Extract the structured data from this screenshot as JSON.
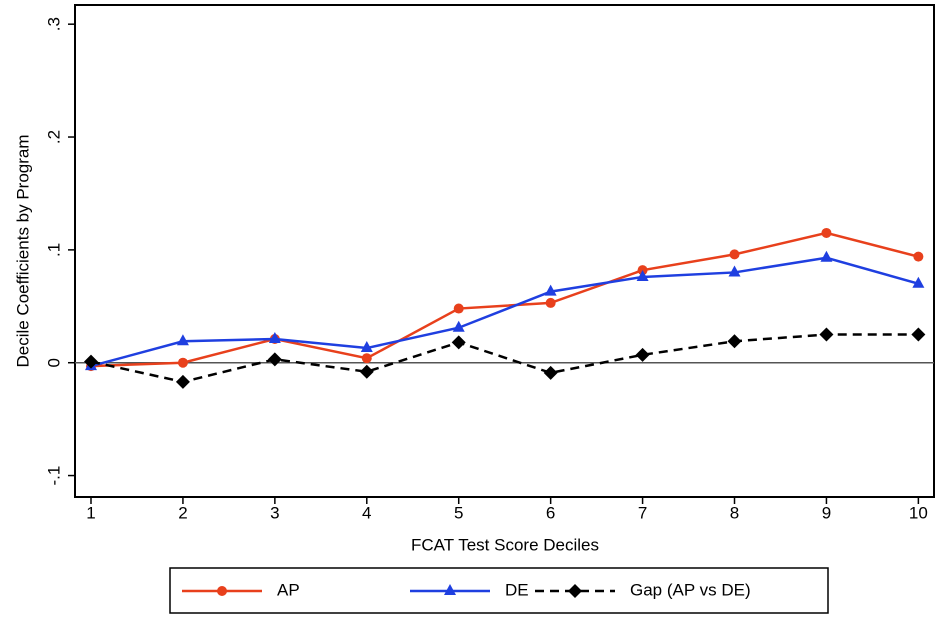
{
  "chart_data": {
    "type": "line",
    "x_label": "FCAT Test Score Deciles",
    "y_label": "Decile Coefficients by Program",
    "x": [
      1,
      2,
      3,
      4,
      5,
      6,
      7,
      8,
      9,
      10
    ],
    "series": [
      {
        "name": "AP",
        "color": "#e8401c",
        "marker": "circle",
        "dashed": false,
        "values": [
          -0.003,
          0.0,
          0.021,
          0.004,
          0.048,
          0.053,
          0.082,
          0.096,
          0.115,
          0.094
        ]
      },
      {
        "name": "DE",
        "color": "#1f3fe0",
        "marker": "triangle",
        "dashed": false,
        "values": [
          -0.003,
          0.019,
          0.021,
          0.013,
          0.031,
          0.063,
          0.076,
          0.08,
          0.093,
          0.07
        ]
      },
      {
        "name": "Gap (AP vs DE)",
        "color": "#000000",
        "marker": "diamond",
        "dashed": true,
        "values": [
          0.001,
          -0.017,
          0.003,
          -0.008,
          0.018,
          -0.009,
          0.007,
          0.019,
          0.025,
          0.025
        ]
      }
    ],
    "xlim": [
      0.826,
      10.17
    ],
    "ylim": [
      -0.119,
      0.317
    ],
    "xticks": [
      1,
      2,
      3,
      4,
      5,
      6,
      7,
      8,
      9,
      10
    ],
    "yticks": [
      {
        "value": -0.1,
        "label": "-.1"
      },
      0,
      {
        "value": 0.1,
        "label": ".1"
      },
      {
        "value": 0.2,
        "label": ".2"
      },
      {
        "value": 0.3,
        "label": ".3"
      }
    ],
    "hline": 0,
    "legend": "bottom"
  }
}
